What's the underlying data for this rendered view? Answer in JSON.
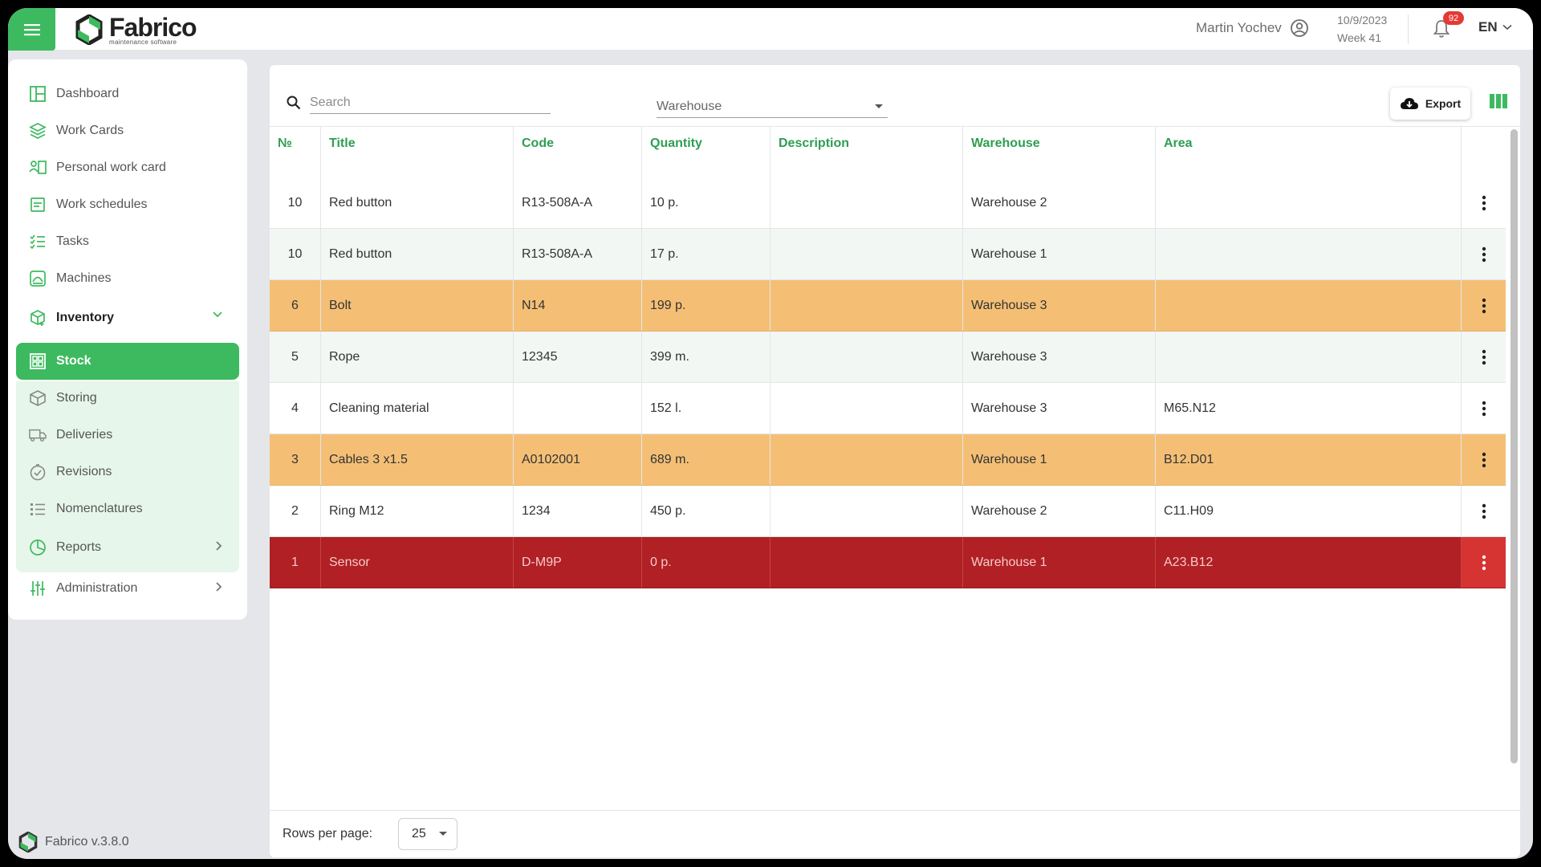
{
  "header": {
    "logo_name": "Fabrico",
    "logo_subtitle": "maintenance software",
    "user_name": "Martin Yochev",
    "date": "10/9/2023",
    "week": "Week 41",
    "notifications_count": "92",
    "language": "EN"
  },
  "sidebar": {
    "items": [
      {
        "label": "Dashboard",
        "icon": "dashboard-icon"
      },
      {
        "label": "Work Cards",
        "icon": "layers-icon"
      },
      {
        "label": "Personal work card",
        "icon": "personal-card-icon"
      },
      {
        "label": "Work schedules",
        "icon": "schedule-icon"
      },
      {
        "label": "Tasks",
        "icon": "tasks-icon"
      },
      {
        "label": "Machines",
        "icon": "machine-icon"
      },
      {
        "label": "Inventory",
        "icon": "inventory-icon"
      },
      {
        "label": "Stock",
        "icon": "stock-icon"
      },
      {
        "label": "Storing",
        "icon": "box-icon"
      },
      {
        "label": "Deliveries",
        "icon": "truck-icon"
      },
      {
        "label": "Revisions",
        "icon": "revision-icon"
      },
      {
        "label": "Nomenclatures",
        "icon": "list-icon"
      },
      {
        "label": "Reports",
        "icon": "reports-icon"
      },
      {
        "label": "Administration",
        "icon": "sliders-icon"
      }
    ],
    "version": "Fabrico v.3.8.0"
  },
  "toolbar": {
    "search_placeholder": "Search",
    "warehouse_placeholder": "Warehouse",
    "export_label": "Export"
  },
  "table": {
    "columns": [
      "№",
      "Title",
      "Code",
      "Quantity",
      "Description",
      "Warehouse",
      "Area"
    ],
    "rows": [
      {
        "no": "10",
        "title": "Red button",
        "code": "R13-508A-A",
        "quantity": "10 p.",
        "description": "",
        "warehouse": "Warehouse 2",
        "area": "",
        "status": "white"
      },
      {
        "no": "10",
        "title": "Red button",
        "code": "R13-508A-A",
        "quantity": "17 p.",
        "description": "",
        "warehouse": "Warehouse 1",
        "area": "",
        "status": "alt"
      },
      {
        "no": "6",
        "title": "Bolt",
        "code": "N14",
        "quantity": "199 p.",
        "description": "",
        "warehouse": "Warehouse 3",
        "area": "",
        "status": "orange"
      },
      {
        "no": "5",
        "title": "Rope",
        "code": "12345",
        "quantity": "399 m.",
        "description": "",
        "warehouse": "Warehouse 3",
        "area": "",
        "status": "alt"
      },
      {
        "no": "4",
        "title": "Cleaning material",
        "code": "",
        "quantity": "152 l.",
        "description": "",
        "warehouse": "Warehouse 3",
        "area": "M65.N12",
        "status": "white"
      },
      {
        "no": "3",
        "title": "Cables 3 x1.5",
        "code": "A0102001",
        "quantity": "689 m.",
        "description": "",
        "warehouse": "Warehouse 1",
        "area": "B12.D01",
        "status": "orange"
      },
      {
        "no": "2",
        "title": "Ring M12",
        "code": "1234",
        "quantity": "450 p.",
        "description": "",
        "warehouse": "Warehouse 2",
        "area": "C11.H09",
        "status": "white"
      },
      {
        "no": "1",
        "title": "Sensor",
        "code": "D-M9P",
        "quantity": "0 p.",
        "description": "",
        "warehouse": "Warehouse 1",
        "area": "A23.B12",
        "status": "red"
      }
    ]
  },
  "footer": {
    "rows_per_page_label": "Rows per page:",
    "rows_per_page_value": "25"
  },
  "colors": {
    "brand_green": "#3dba5f",
    "header_text_green": "#2e9e52",
    "warning_orange": "#f4bf75",
    "critical_red": "#b02024"
  }
}
